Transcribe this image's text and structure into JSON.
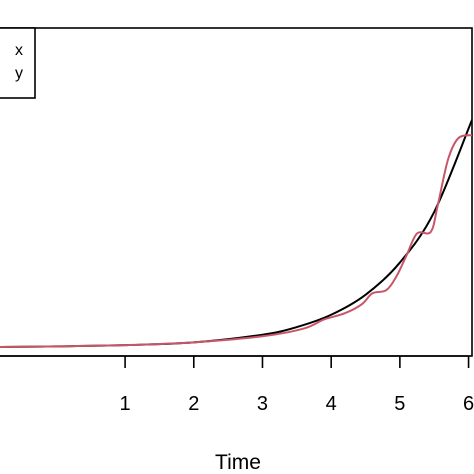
{
  "chart_data": {
    "type": "line",
    "xlabel": "Time",
    "ylabel": "",
    "title": "",
    "xlim": [
      -0.85,
      6.05
    ],
    "ylim": [
      0,
      1.0
    ],
    "xticks": [
      "1",
      "2",
      "3",
      "4",
      "5",
      "6"
    ],
    "xtick_values": [
      1,
      2,
      3,
      4,
      5,
      6
    ],
    "legend": {
      "placement": "top-left",
      "entries": [
        "x",
        "y"
      ]
    },
    "series": [
      {
        "name": "x",
        "color": "#000000",
        "x": [
          -0.85,
          0,
          1,
          2,
          3,
          3.5,
          4,
          4.5,
          5,
          5.5,
          6.05
        ],
        "y": [
          0.0,
          0.002,
          0.006,
          0.015,
          0.04,
          0.065,
          0.105,
          0.17,
          0.275,
          0.44,
          0.74
        ]
      },
      {
        "name": "y",
        "color": "#c8566a",
        "x": [
          -0.85,
          0,
          1,
          2,
          3,
          3.6,
          3.9,
          4.2,
          4.45,
          4.6,
          4.8,
          4.95,
          5.1,
          5.25,
          5.45,
          5.55,
          5.7,
          5.85,
          6.05
        ],
        "y": [
          0.0,
          0.002,
          0.006,
          0.015,
          0.035,
          0.06,
          0.09,
          0.11,
          0.14,
          0.175,
          0.185,
          0.23,
          0.3,
          0.37,
          0.375,
          0.46,
          0.61,
          0.68,
          0.69
        ]
      }
    ]
  }
}
